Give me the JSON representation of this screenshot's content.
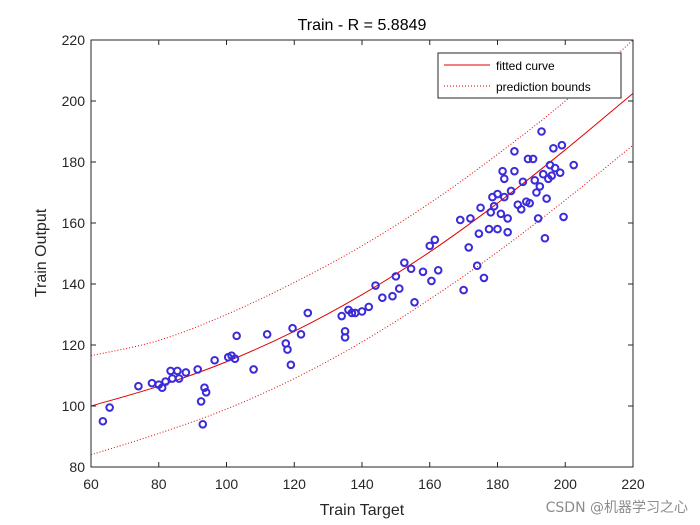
{
  "chart_data": {
    "type": "scatter",
    "title": "Train - R =  5.8849",
    "xlabel": "Train Target",
    "ylabel": "Train Output",
    "xlim": [
      60,
      220
    ],
    "ylim": [
      80,
      220
    ],
    "xticks": [
      60,
      80,
      100,
      120,
      140,
      160,
      180,
      200,
      220
    ],
    "yticks": [
      80,
      100,
      120,
      140,
      160,
      180,
      200,
      220
    ],
    "grid": false,
    "legend": {
      "placement": "top-right",
      "entries": [
        {
          "label": "fitted curve",
          "style": "solid",
          "color": "#e00000"
        },
        {
          "label": "prediction bounds",
          "style": "dotted",
          "color": "#e00000"
        }
      ]
    },
    "series": [
      {
        "name": "data",
        "marker": "circle",
        "color": "#3b2bd9",
        "x": [
          63.5,
          65.5,
          74,
          78,
          80,
          81,
          82,
          83.5,
          84,
          85.5,
          86,
          88,
          91.5,
          92.5,
          93,
          93.5,
          94,
          96.5,
          100.5,
          101.5,
          102.5,
          103,
          108,
          112,
          117.5,
          118,
          119,
          119.5,
          122,
          124,
          134,
          135,
          135,
          136,
          137,
          138,
          140,
          142,
          144,
          146,
          149,
          150,
          151,
          152.5,
          154.5,
          155.5,
          158,
          160,
          160.5,
          161.5,
          162.5,
          169,
          170,
          171.5,
          172,
          174,
          174.5,
          176,
          175,
          177.5,
          178,
          178.5,
          179,
          180,
          180,
          181,
          181.5,
          182,
          182,
          183,
          183,
          184,
          185,
          185,
          186,
          187,
          187.5,
          188.5,
          189,
          189.5,
          190.5,
          191,
          191.5,
          192,
          192.5,
          193,
          193.5,
          194,
          194.5,
          195,
          195.5,
          196,
          196.5,
          197,
          198.5,
          199,
          199.5,
          202.5
        ],
        "y": [
          95,
          99.5,
          106.5,
          107.5,
          107,
          106,
          108,
          111.5,
          109,
          111.5,
          109,
          111,
          112,
          101.5,
          94,
          106,
          104.5,
          115,
          116,
          116.5,
          115.5,
          123,
          112,
          123.5,
          120.5,
          118.5,
          113.5,
          125.5,
          123.5,
          130.5,
          129.5,
          122.5,
          124.5,
          131.5,
          130.5,
          130.5,
          131,
          132.5,
          139.5,
          135.5,
          136,
          142.5,
          138.5,
          147,
          145,
          134,
          144,
          152.5,
          141,
          154.5,
          144.5,
          161,
          138,
          152,
          161.5,
          146,
          156.5,
          142,
          165,
          158,
          163.5,
          168.5,
          165.5,
          169.5,
          158,
          163,
          177,
          168.5,
          174.5,
          157,
          161.5,
          170.5,
          177,
          183.5,
          166,
          164.5,
          173.5,
          167,
          181,
          166.5,
          181,
          174,
          170,
          161.5,
          172,
          190,
          176,
          155,
          168,
          174.5,
          179,
          175.5,
          184.5,
          178,
          176.5,
          185.5,
          162,
          179
        ]
      }
    ],
    "fitted_curve": {
      "name": "fitted curve",
      "x": [
        60,
        80,
        100,
        120,
        140,
        160,
        180,
        200,
        220
      ],
      "y": [
        100,
        106.5,
        114.5,
        124.5,
        136.5,
        150.5,
        166.5,
        184,
        202.5
      ]
    },
    "prediction_bounds": {
      "name": "prediction bounds",
      "x": [
        60,
        80,
        100,
        120,
        140,
        160,
        180,
        200,
        220
      ],
      "upper": [
        116.5,
        121.5,
        130,
        140.5,
        152.5,
        166.5,
        182.5,
        200,
        220
      ],
      "lower": [
        84,
        91,
        99,
        109,
        121,
        135,
        150.5,
        167.5,
        185.5
      ]
    }
  },
  "watermark": "CSDN @机器学习之心"
}
